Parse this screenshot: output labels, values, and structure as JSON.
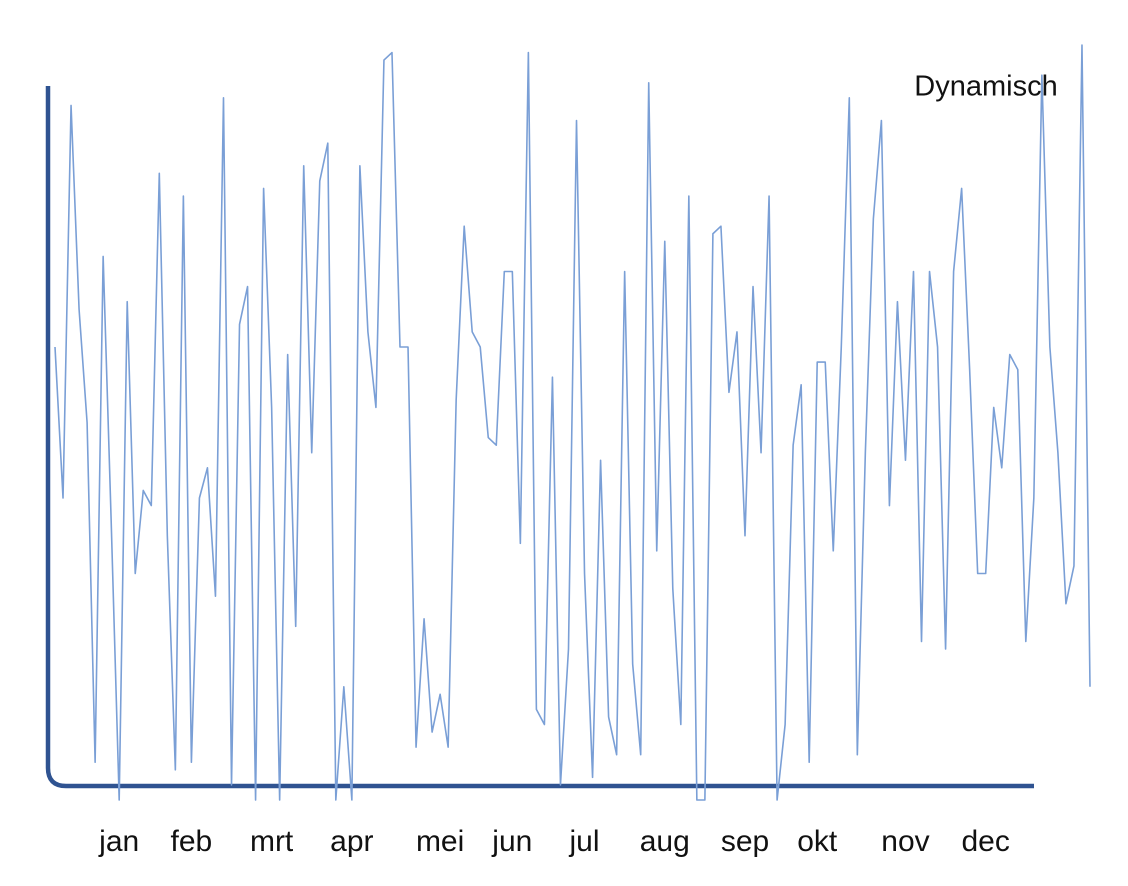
{
  "chart_data": {
    "type": "line",
    "title": "Dynamisch",
    "categories": [
      null,
      null,
      null,
      null,
      null,
      null,
      null,
      null,
      "jan",
      null,
      null,
      null,
      null,
      null,
      null,
      null,
      null,
      "feb",
      null,
      null,
      null,
      null,
      null,
      null,
      null,
      null,
      null,
      "mrt",
      null,
      null,
      null,
      null,
      null,
      null,
      null,
      null,
      null,
      "apr",
      null,
      null,
      null,
      null,
      null,
      null,
      null,
      null,
      null,
      null,
      "mei",
      null,
      null,
      null,
      null,
      null,
      null,
      null,
      null,
      "jun",
      null,
      null,
      null,
      null,
      null,
      null,
      null,
      null,
      "jul",
      null,
      null,
      null,
      null,
      null,
      null,
      null,
      null,
      null,
      "aug",
      null,
      null,
      null,
      null,
      null,
      null,
      null,
      null,
      null,
      "sep",
      null,
      null,
      null,
      null,
      null,
      null,
      null,
      null,
      "okt",
      null,
      null,
      null,
      null,
      null,
      null,
      null,
      null,
      null,
      null,
      "nov",
      null,
      null,
      null,
      null,
      null,
      null,
      null,
      null,
      null,
      "dec",
      null,
      null,
      null,
      null,
      null,
      null,
      null,
      null,
      null,
      null,
      null,
      null,
      null
    ],
    "values": [
      60,
      40,
      92,
      65,
      50,
      5,
      72,
      37,
      0,
      66,
      30,
      41,
      39,
      83,
      35,
      4,
      80,
      5,
      40,
      44,
      27,
      93,
      2,
      63,
      68,
      0,
      81,
      52,
      0,
      59,
      23,
      84,
      46,
      82,
      87,
      0,
      15,
      0,
      84,
      62,
      52,
      98,
      99,
      60,
      60,
      7,
      24,
      9,
      14,
      7,
      53,
      76,
      62,
      60,
      48,
      47,
      70,
      70,
      34,
      99,
      12,
      10,
      56,
      2,
      20,
      90,
      30,
      3,
      45,
      11,
      6,
      70,
      18,
      6,
      95,
      33,
      74,
      28,
      10,
      80,
      0,
      0,
      75,
      76,
      54,
      62,
      35,
      68,
      46,
      80,
      0,
      10,
      47,
      55,
      5,
      58,
      58,
      33,
      60,
      93,
      6,
      46,
      77,
      90,
      39,
      66,
      45,
      70,
      21,
      70,
      60,
      20,
      70,
      81,
      57,
      30,
      30,
      52,
      44,
      59,
      57,
      21,
      40,
      96,
      60,
      46,
      26,
      31,
      100,
      15
    ],
    "color": "#7a9fd6",
    "ylim": [
      0,
      100
    ]
  }
}
